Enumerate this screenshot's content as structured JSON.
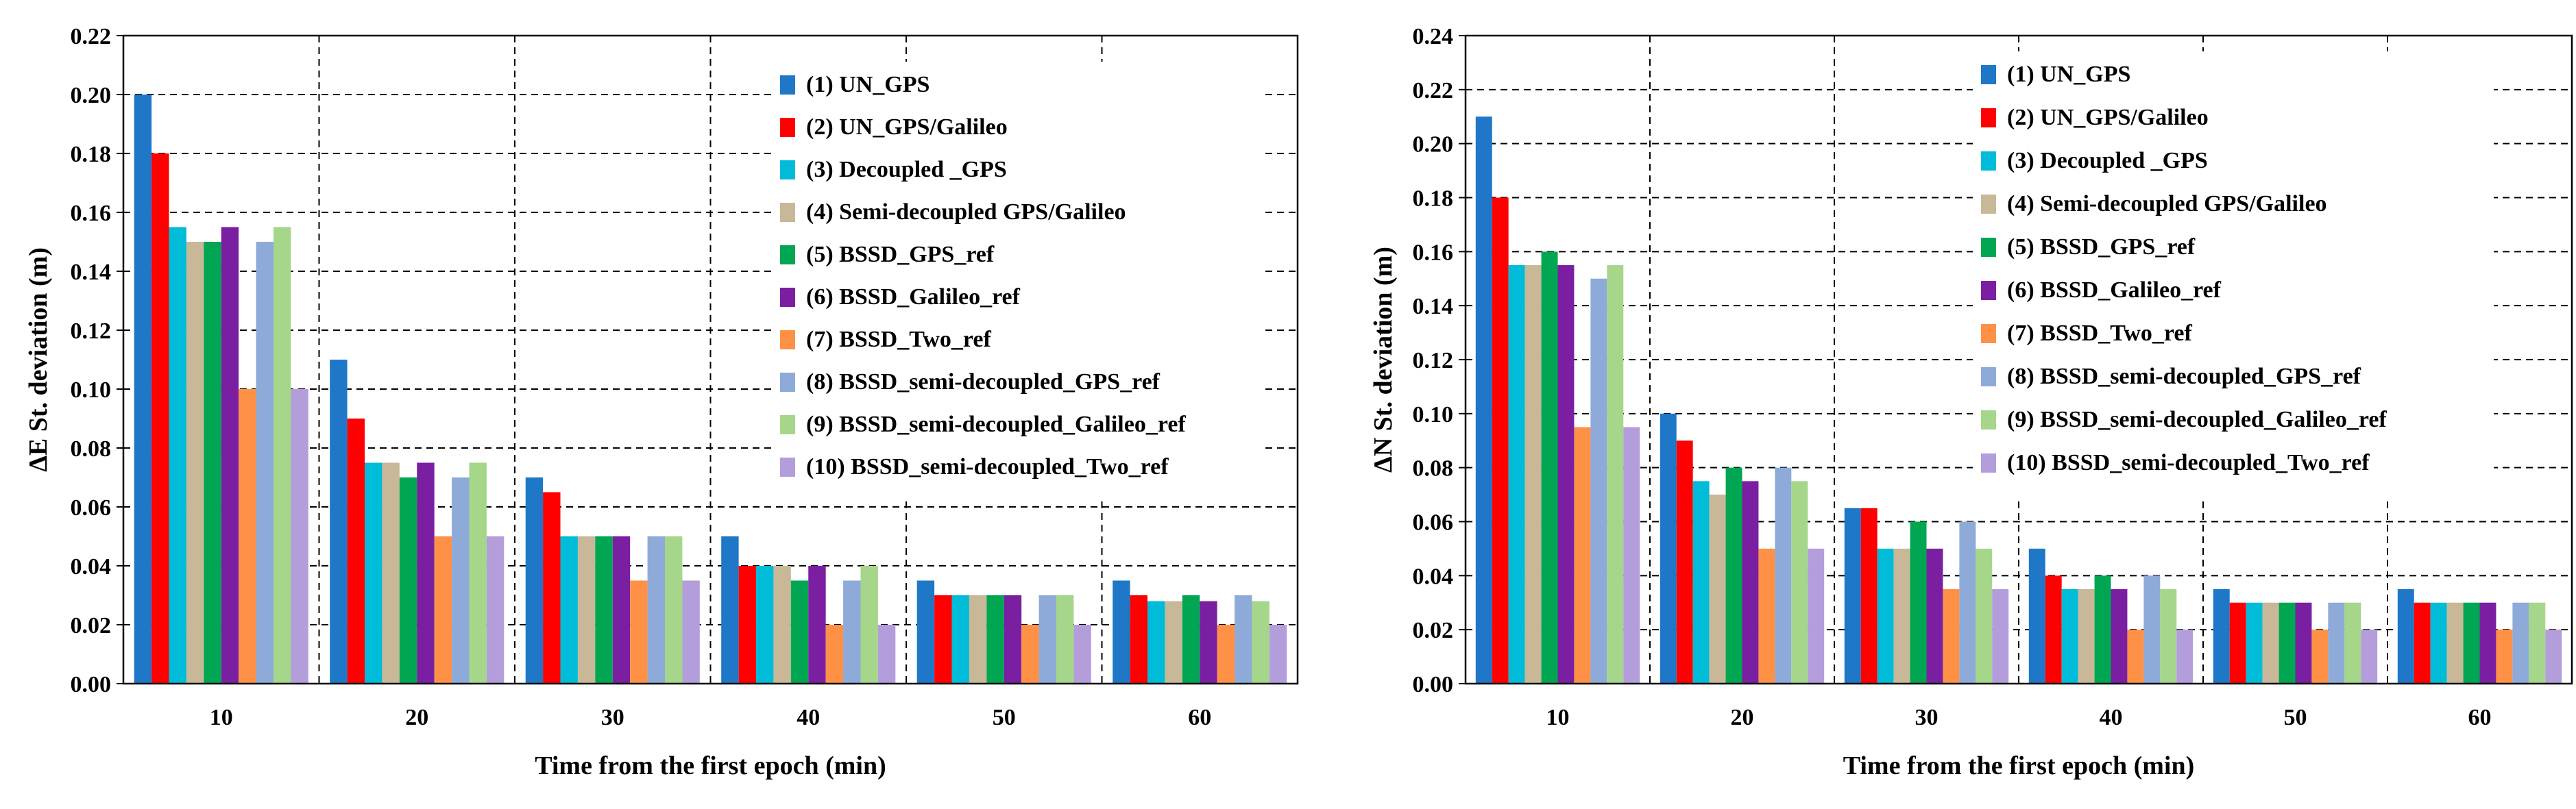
{
  "series_names": [
    "(1) UN_GPS",
    "(2) UN_GPS/Galileo",
    "(3) Decoupled _GPS",
    "(4) Semi-decoupled GPS/Galileo",
    "(5) BSSD_GPS_ref",
    "(6) BSSD_Galileo_ref",
    "(7) BSSD_Two_ref",
    "(8) BSSD_semi-decoupled_GPS_ref",
    "(9) BSSD_semi-decoupled_Galileo_ref",
    "(10) BSSD_semi-decoupled_Two_ref"
  ],
  "series_colors": [
    "#1f77c8",
    "#ff0000",
    "#00bcd8",
    "#c8b898",
    "#00a651",
    "#7b1fa2",
    "#ff9147",
    "#8eaad8",
    "#a5d68a",
    "#b39ddb"
  ],
  "chart_data": [
    {
      "type": "bar",
      "categories": [
        "10",
        "20",
        "30",
        "40",
        "50",
        "60"
      ],
      "xlabel": "Time from the first epoch (min)",
      "ylabel": "ΔE St. deviation (m)",
      "ylim": [
        0,
        0.22
      ],
      "yticks": [
        "0.00",
        "0.02",
        "0.04",
        "0.06",
        "0.08",
        "0.10",
        "0.12",
        "0.14",
        "0.16",
        "0.18",
        "0.20",
        "0.22"
      ],
      "grid": true,
      "legend": "top-right",
      "series": [
        {
          "name": "(1) UN_GPS",
          "values": [
            0.2,
            0.11,
            0.07,
            0.05,
            0.035,
            0.035
          ]
        },
        {
          "name": "(2) UN_GPS/Galileo",
          "values": [
            0.18,
            0.09,
            0.065,
            0.04,
            0.03,
            0.03
          ]
        },
        {
          "name": "(3) Decoupled _GPS",
          "values": [
            0.155,
            0.075,
            0.05,
            0.04,
            0.03,
            0.028
          ]
        },
        {
          "name": "(4) Semi-decoupled GPS/Galileo",
          "values": [
            0.15,
            0.075,
            0.05,
            0.04,
            0.03,
            0.028
          ]
        },
        {
          "name": "(5) BSSD_GPS_ref",
          "values": [
            0.15,
            0.07,
            0.05,
            0.035,
            0.03,
            0.03
          ]
        },
        {
          "name": "(6) BSSD_Galileo_ref",
          "values": [
            0.155,
            0.075,
            0.05,
            0.04,
            0.03,
            0.028
          ]
        },
        {
          "name": "(7) BSSD_Two_ref",
          "values": [
            0.1,
            0.05,
            0.035,
            0.02,
            0.02,
            0.02
          ]
        },
        {
          "name": "(8) BSSD_semi-decoupled_GPS_ref",
          "values": [
            0.15,
            0.07,
            0.05,
            0.035,
            0.03,
            0.03
          ]
        },
        {
          "name": "(9) BSSD_semi-decoupled_Galileo_ref",
          "values": [
            0.155,
            0.075,
            0.05,
            0.04,
            0.03,
            0.028
          ]
        },
        {
          "name": "(10) BSSD_semi-decoupled_Two_ref",
          "values": [
            0.1,
            0.05,
            0.035,
            0.02,
            0.02,
            0.02
          ]
        }
      ]
    },
    {
      "type": "bar",
      "categories": [
        "10",
        "20",
        "30",
        "40",
        "50",
        "60"
      ],
      "xlabel": "Time from the first epoch (min)",
      "ylabel": "ΔN St. deviation (m)",
      "ylim": [
        0,
        0.24
      ],
      "yticks": [
        "0.00",
        "0.02",
        "0.04",
        "0.06",
        "0.08",
        "0.10",
        "0.12",
        "0.14",
        "0.16",
        "0.18",
        "0.20",
        "0.22",
        "0.24"
      ],
      "grid": true,
      "legend": "top-right",
      "series": [
        {
          "name": "(1) UN_GPS",
          "values": [
            0.21,
            0.1,
            0.065,
            0.05,
            0.035,
            0.035
          ]
        },
        {
          "name": "(2) UN_GPS/Galileo",
          "values": [
            0.18,
            0.09,
            0.065,
            0.04,
            0.03,
            0.03
          ]
        },
        {
          "name": "(3) Decoupled _GPS",
          "values": [
            0.155,
            0.075,
            0.05,
            0.035,
            0.03,
            0.03
          ]
        },
        {
          "name": "(4) Semi-decoupled GPS/Galileo",
          "values": [
            0.155,
            0.07,
            0.05,
            0.035,
            0.03,
            0.03
          ]
        },
        {
          "name": "(5) BSSD_GPS_ref",
          "values": [
            0.16,
            0.08,
            0.06,
            0.04,
            0.03,
            0.03
          ]
        },
        {
          "name": "(6) BSSD_Galileo_ref",
          "values": [
            0.155,
            0.075,
            0.05,
            0.035,
            0.03,
            0.03
          ]
        },
        {
          "name": "(7) BSSD_Two_ref",
          "values": [
            0.095,
            0.05,
            0.035,
            0.02,
            0.02,
            0.02
          ]
        },
        {
          "name": "(8) BSSD_semi-decoupled_GPS_ref",
          "values": [
            0.15,
            0.08,
            0.06,
            0.04,
            0.03,
            0.03
          ]
        },
        {
          "name": "(9) BSSD_semi-decoupled_Galileo_ref",
          "values": [
            0.155,
            0.075,
            0.05,
            0.035,
            0.03,
            0.03
          ]
        },
        {
          "name": "(10) BSSD_semi-decoupled_Two_ref",
          "values": [
            0.095,
            0.05,
            0.035,
            0.02,
            0.02,
            0.02
          ]
        }
      ]
    }
  ]
}
